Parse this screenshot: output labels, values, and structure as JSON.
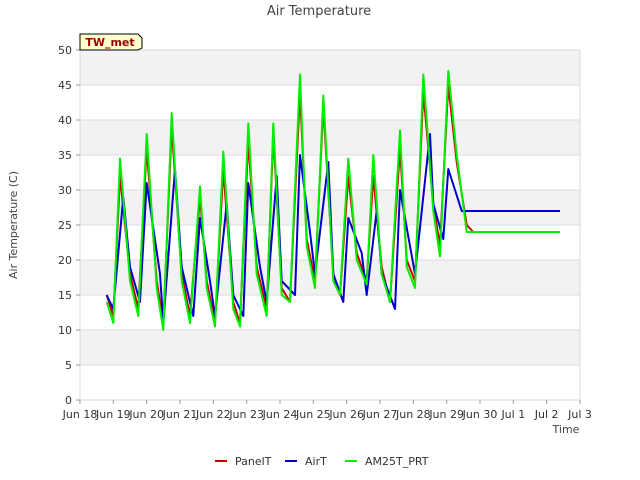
{
  "chart_data": {
    "type": "line",
    "title": "Air Temperature",
    "xlabel": "Time",
    "ylabel": "Air Temperature (C)",
    "station_badge": "TW_met",
    "ylim": [
      0,
      50
    ],
    "yticks": [
      0,
      5,
      10,
      15,
      20,
      25,
      30,
      35,
      40,
      45,
      50
    ],
    "xlim": [
      0,
      15
    ],
    "xtick_labels": [
      "Jun 18",
      "Jun 19",
      "Jun 20",
      "Jun 21",
      "Jun 22",
      "Jun 23",
      "Jun 24",
      "Jun 25",
      "Jun 26",
      "Jun 27",
      "Jun 28",
      "Jun 29",
      "Jun 30",
      "Jul 1",
      "Jul 2",
      "Jul 3"
    ],
    "grid": true,
    "legend_position": "bottom",
    "series": [
      {
        "name": "PanelT",
        "color": "#cc0000",
        "x": [
          0.8,
          1.0,
          1.2,
          1.5,
          1.75,
          2.0,
          2.3,
          2.5,
          2.75,
          3.05,
          3.3,
          3.6,
          3.8,
          4.05,
          4.3,
          4.6,
          4.8,
          5.05,
          5.3,
          5.6,
          5.8,
          6.05,
          6.3,
          6.6,
          6.8,
          7.05,
          7.3,
          7.6,
          7.8,
          8.05,
          8.3,
          8.6,
          8.8,
          9.05,
          9.3,
          9.6,
          9.8,
          10.05,
          10.3,
          10.6,
          10.8,
          11.05,
          11.3,
          11.6,
          11.8,
          12.05,
          12.3,
          12.6,
          12.8,
          13.05,
          13.3,
          13.6,
          13.8,
          14.05,
          14.3,
          14.4
        ],
        "y": [
          15,
          12,
          32,
          18,
          13,
          36,
          17,
          11,
          39,
          18,
          12,
          29,
          17,
          11,
          33,
          14,
          11,
          37,
          19,
          13,
          38,
          16,
          14,
          44,
          23,
          17,
          42,
          18,
          15,
          32,
          21,
          17,
          32,
          19,
          14,
          36,
          20,
          17,
          44,
          28,
          22,
          45,
          34,
          25,
          24,
          24,
          24,
          24,
          24,
          24,
          24,
          24,
          24,
          24,
          24,
          24
        ]
      },
      {
        "name": "AirT",
        "color": "#0000cc",
        "x": [
          0.8,
          1.0,
          1.3,
          1.5,
          1.8,
          2.0,
          2.4,
          2.5,
          2.85,
          3.05,
          3.4,
          3.6,
          3.9,
          4.05,
          4.4,
          4.6,
          4.9,
          5.05,
          5.4,
          5.6,
          5.9,
          6.05,
          6.45,
          6.6,
          6.9,
          7.05,
          7.45,
          7.6,
          7.9,
          8.05,
          8.45,
          8.6,
          8.9,
          9.05,
          9.45,
          9.6,
          9.9,
          10.05,
          10.5,
          10.6,
          10.9,
          11.05,
          11.45,
          11.6,
          11.9,
          12.05,
          12.4,
          12.6,
          12.85,
          13.05,
          13.4,
          13.6,
          13.9,
          14.05,
          14.3,
          14.4
        ],
        "y": [
          15,
          13,
          29,
          19,
          14,
          31,
          18,
          11,
          33,
          19,
          12,
          26,
          17,
          12,
          28,
          15,
          12,
          31,
          19,
          14,
          32,
          17,
          15,
          35,
          24,
          18,
          34,
          18,
          14,
          26,
          21,
          15,
          27,
          18,
          13,
          30,
          22,
          18,
          38,
          28,
          23,
          33,
          27,
          27,
          27,
          27,
          27,
          27,
          27,
          27,
          27,
          27,
          27,
          27,
          27,
          27
        ]
      },
      {
        "name": "AM25T_PRT",
        "color": "#00ee00",
        "x": [
          0.8,
          1.0,
          1.2,
          1.5,
          1.75,
          2.0,
          2.3,
          2.5,
          2.75,
          3.05,
          3.3,
          3.6,
          3.8,
          4.05,
          4.3,
          4.6,
          4.8,
          5.05,
          5.3,
          5.6,
          5.8,
          6.05,
          6.3,
          6.6,
          6.8,
          7.05,
          7.3,
          7.6,
          7.8,
          8.05,
          8.3,
          8.6,
          8.8,
          9.05,
          9.3,
          9.6,
          9.8,
          10.05,
          10.3,
          10.6,
          10.8,
          11.05,
          11.3,
          11.6,
          11.8,
          12.05,
          12.3,
          12.6,
          12.8,
          13.05,
          13.3,
          13.6,
          13.8,
          14.05,
          14.3,
          14.4
        ],
        "y": [
          14,
          11,
          34.5,
          17,
          12,
          38,
          16,
          10,
          41,
          17,
          11,
          30.5,
          16,
          10.5,
          35.5,
          13,
          10.5,
          39.5,
          18,
          12,
          39.5,
          15,
          14,
          46.5,
          22,
          16,
          43.5,
          17,
          15,
          34.5,
          20,
          16.5,
          35,
          18,
          14,
          38.5,
          19,
          16,
          46.5,
          27,
          20.5,
          47,
          35,
          24,
          24,
          24,
          24,
          24,
          24,
          24,
          24,
          24,
          24,
          24,
          24,
          24
        ]
      }
    ]
  }
}
